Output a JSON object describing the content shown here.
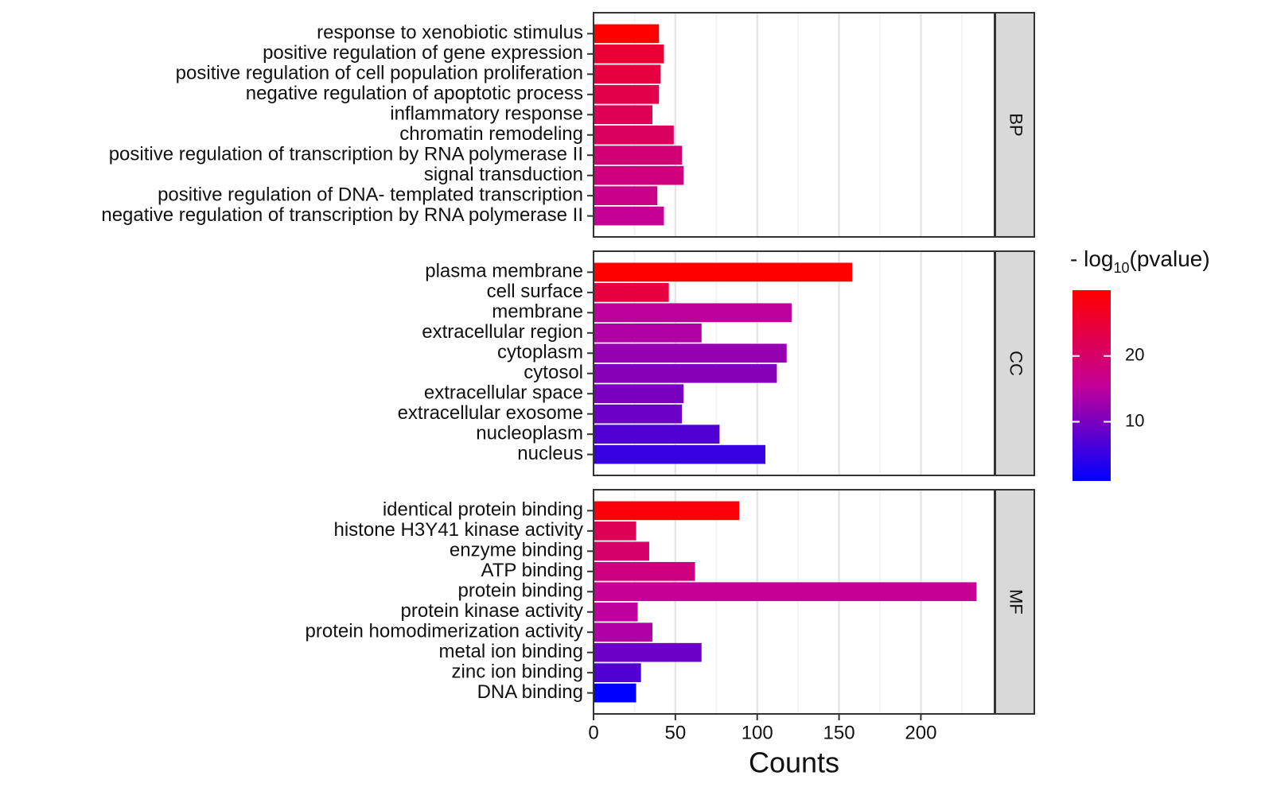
{
  "chart_data": {
    "type": "bar",
    "orientation": "horizontal",
    "xlabel": "Counts",
    "xlim": [
      0,
      245
    ],
    "xticks": [
      0,
      50,
      100,
      150,
      200
    ],
    "grid": true,
    "facets": [
      {
        "label": "BP",
        "categories": [
          "response to xenobiotic stimulus",
          "positive regulation of gene expression",
          "positive regulation of cell population proliferation",
          "negative regulation of apoptotic process",
          "inflammatory response",
          "chromatin remodeling",
          "positive regulation of transcription by RNA polymerase II",
          "signal transduction",
          "positive regulation of DNA- templated transcription",
          "negative regulation of transcription by RNA polymerase II"
        ],
        "values": [
          40,
          43,
          41,
          40,
          36,
          49,
          54,
          55,
          39,
          43
        ],
        "color_values": [
          30,
          25,
          24,
          23,
          22,
          21,
          19,
          18,
          17,
          16
        ]
      },
      {
        "label": "CC",
        "categories": [
          "plasma membrane",
          "cell surface",
          "membrane",
          "extracellular region",
          "cytoplasm",
          "cytosol",
          "extracellular space",
          "extracellular exosome",
          "nucleoplasm",
          "nucleus"
        ],
        "values": [
          158,
          46,
          121,
          66,
          118,
          112,
          55,
          54,
          77,
          105
        ],
        "color_values": [
          30,
          24,
          15,
          14,
          12,
          11,
          10,
          9,
          7,
          5
        ]
      },
      {
        "label": "MF",
        "categories": [
          "identical protein binding",
          "histone H3Y41 kinase activity",
          "enzyme binding",
          "ATP binding",
          "protein binding",
          "protein kinase activity",
          "protein homodimerization activity",
          "metal ion binding",
          "zinc ion binding",
          "DNA binding"
        ],
        "values": [
          89,
          26,
          34,
          62,
          234,
          27,
          36,
          66,
          29,
          26
        ],
        "color_values": [
          29,
          22,
          20,
          18,
          16,
          15,
          14,
          9,
          7,
          1
        ]
      }
    ],
    "colorbar": {
      "title": [
        "- log",
        "10",
        "(pvalue)"
      ],
      "lim": [
        1,
        30
      ],
      "ticks": [
        10,
        20
      ],
      "colors": [
        "#0000ff",
        "#c40098",
        "#ff0000"
      ]
    }
  }
}
